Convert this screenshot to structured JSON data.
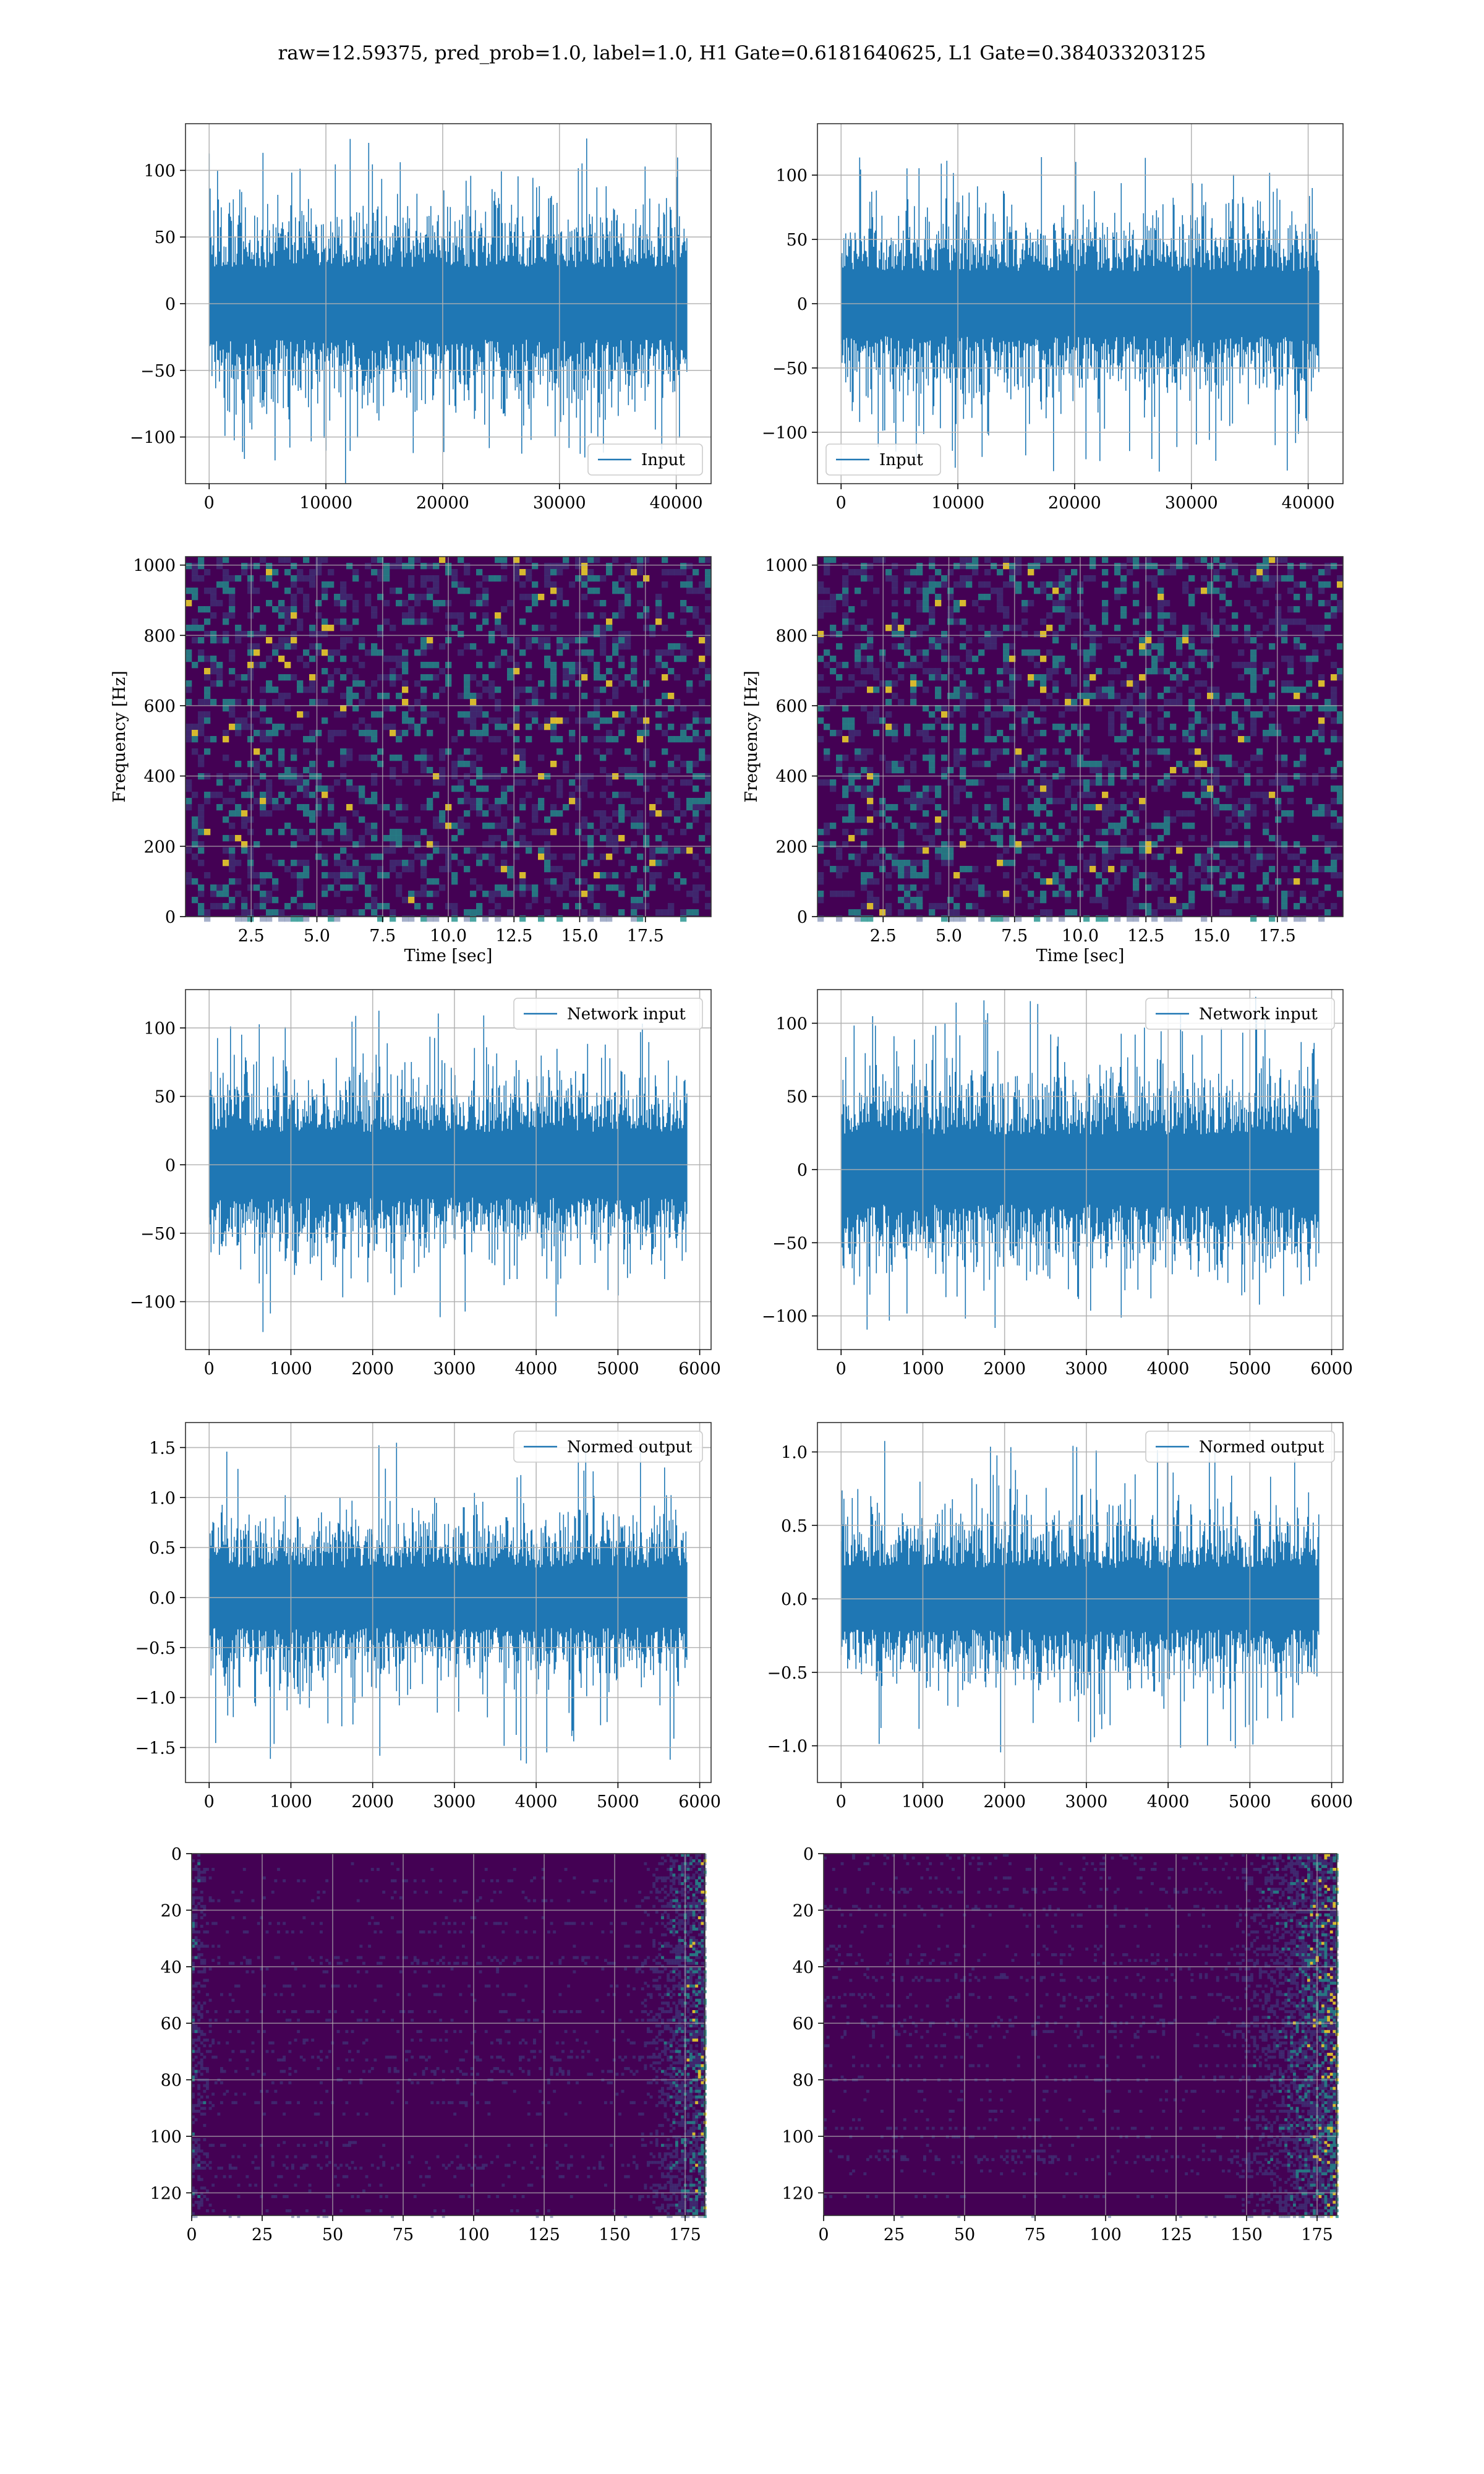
{
  "title": "raw=12.59375, pred_prob=1.0, label=1.0, H1 Gate=0.6181640625, L1 Gate=0.384033203125",
  "colors": {
    "line": "#1f77b4",
    "grid": "#b0b0b0",
    "spec_bg": "#440154",
    "spec_mid": "#3b528b",
    "spec_hi": "#21918c",
    "spec_peak": "#fde725"
  },
  "chart_data": [
    {
      "id": "h1-input",
      "type": "line",
      "legend": "Input",
      "legend_loc": "lower right",
      "xlim": [
        0,
        40960
      ],
      "xticks": [
        0,
        10000,
        20000,
        30000,
        40000
      ],
      "xtick_labels": [
        "0",
        "10000",
        "20000",
        "30000",
        "40000"
      ],
      "yticks": [
        -100,
        -50,
        0,
        50,
        100
      ],
      "ytick_labels": [
        "−100",
        "−50",
        "0",
        "50",
        "100"
      ],
      "ylim": [
        -135,
        135
      ],
      "series": {
        "n": 40960,
        "band": 45,
        "max": 124,
        "min": -118
      }
    },
    {
      "id": "l1-input",
      "type": "line",
      "legend": "Input",
      "legend_loc": "lower left",
      "xlim": [
        0,
        40960
      ],
      "xticks": [
        0,
        10000,
        20000,
        30000,
        40000
      ],
      "xtick_labels": [
        "0",
        "10000",
        "20000",
        "30000",
        "40000"
      ],
      "yticks": [
        -100,
        -50,
        0,
        50,
        100
      ],
      "ytick_labels": [
        "−100",
        "−50",
        "0",
        "50",
        "100"
      ],
      "ylim": [
        -140,
        140
      ],
      "series": {
        "n": 40960,
        "band": 42,
        "max": 118,
        "min": -132
      }
    },
    {
      "id": "h1-spectrogram",
      "type": "heatmap",
      "xlabel": "Time [sec]",
      "ylabel": "Frequency [Hz]",
      "xlim": [
        0,
        20
      ],
      "ylim": [
        0,
        1024
      ],
      "xticks": [
        2.5,
        5.0,
        7.5,
        10.0,
        12.5,
        15.0,
        17.5
      ],
      "xtick_labels": [
        "2.5",
        "5.0",
        "7.5",
        "10.0",
        "12.5",
        "15.0",
        "17.5"
      ],
      "yticks": [
        0,
        200,
        400,
        600,
        800,
        1000
      ],
      "ytick_labels": [
        "0",
        "200",
        "400",
        "600",
        "800",
        "1000"
      ]
    },
    {
      "id": "l1-spectrogram",
      "type": "heatmap",
      "xlabel": "Time [sec]",
      "ylabel": "Frequency [Hz]",
      "xlim": [
        0,
        20
      ],
      "ylim": [
        0,
        1024
      ],
      "xticks": [
        2.5,
        5.0,
        7.5,
        10.0,
        12.5,
        15.0,
        17.5
      ],
      "xtick_labels": [
        "2.5",
        "5.0",
        "7.5",
        "10.0",
        "12.5",
        "15.0",
        "17.5"
      ],
      "yticks": [
        0,
        200,
        400,
        600,
        800,
        1000
      ],
      "ytick_labels": [
        "0",
        "200",
        "400",
        "600",
        "800",
        "1000"
      ]
    },
    {
      "id": "h1-network-input",
      "type": "line",
      "legend": "Network input",
      "legend_loc": "upper right",
      "xlim": [
        0,
        5850
      ],
      "xticks": [
        0,
        1000,
        2000,
        3000,
        4000,
        5000,
        6000
      ],
      "xtick_labels": [
        "0",
        "1000",
        "2000",
        "3000",
        "4000",
        "5000",
        "6000"
      ],
      "yticks": [
        -100,
        -50,
        0,
        50,
        100
      ],
      "ytick_labels": [
        "−100",
        "−50",
        "0",
        "50",
        "100"
      ],
      "ylim": [
        -135,
        128
      ],
      "series": {
        "n": 5850,
        "band": 40,
        "max": 113,
        "min": -121
      }
    },
    {
      "id": "l1-network-input",
      "type": "line",
      "legend": "Network input",
      "legend_loc": "upper right",
      "xlim": [
        0,
        5850
      ],
      "xticks": [
        0,
        1000,
        2000,
        3000,
        4000,
        5000,
        6000
      ],
      "xtick_labels": [
        "0",
        "1000",
        "2000",
        "3000",
        "4000",
        "5000",
        "6000"
      ],
      "yticks": [
        -100,
        -50,
        0,
        50,
        100
      ],
      "ytick_labels": [
        "−100",
        "−50",
        "0",
        "50",
        "100"
      ],
      "ylim": [
        -123,
        123
      ],
      "series": {
        "n": 5850,
        "band": 40,
        "max": 116,
        "min": -113
      }
    },
    {
      "id": "h1-normed-output",
      "type": "line",
      "legend": "Normed output",
      "legend_loc": "upper right",
      "xlim": [
        0,
        5850
      ],
      "xticks": [
        0,
        1000,
        2000,
        3000,
        4000,
        5000,
        6000
      ],
      "xtick_labels": [
        "0",
        "1000",
        "2000",
        "3000",
        "4000",
        "5000",
        "6000"
      ],
      "yticks": [
        -1.5,
        -1.0,
        -0.5,
        0.0,
        0.5,
        1.0,
        1.5
      ],
      "ytick_labels": [
        "−1.5",
        "−1.0",
        "−0.5",
        "0.0",
        "0.5",
        "1.0",
        "1.5"
      ],
      "ylim": [
        -1.85,
        1.75
      ],
      "series": {
        "n": 5850,
        "band": 0.5,
        "max": 1.58,
        "min": -1.66
      }
    },
    {
      "id": "l1-normed-output",
      "type": "line",
      "legend": "Normed output",
      "legend_loc": "upper right",
      "xlim": [
        0,
        5850
      ],
      "xticks": [
        0,
        1000,
        2000,
        3000,
        4000,
        5000,
        6000
      ],
      "xtick_labels": [
        "0",
        "1000",
        "2000",
        "3000",
        "4000",
        "5000",
        "6000"
      ],
      "yticks": [
        -1.0,
        -0.5,
        0.0,
        0.5,
        1.0
      ],
      "ytick_labels": [
        "−1.0",
        "−0.5",
        "0.0",
        "0.5",
        "1.0"
      ],
      "ylim": [
        -1.25,
        1.2
      ],
      "series": {
        "n": 5850,
        "band": 0.35,
        "max": 1.12,
        "min": -1.05
      }
    },
    {
      "id": "h1-feature-map",
      "type": "heatmap",
      "xlim": [
        0,
        182
      ],
      "ylim": [
        128,
        0
      ],
      "xticks": [
        0,
        25,
        50,
        75,
        100,
        125,
        150,
        175
      ],
      "xtick_labels": [
        "0",
        "25",
        "50",
        "75",
        "100",
        "125",
        "150",
        "175"
      ],
      "yticks": [
        0,
        20,
        40,
        60,
        80,
        100,
        120
      ],
      "ytick_labels": [
        "0",
        "20",
        "40",
        "60",
        "80",
        "100",
        "120"
      ]
    },
    {
      "id": "l1-feature-map",
      "type": "heatmap",
      "xlim": [
        0,
        182
      ],
      "ylim": [
        128,
        0
      ],
      "xticks": [
        0,
        25,
        50,
        75,
        100,
        125,
        150,
        175
      ],
      "xtick_labels": [
        "0",
        "25",
        "50",
        "75",
        "100",
        "125",
        "150",
        "175"
      ],
      "yticks": [
        0,
        20,
        40,
        60,
        80,
        100,
        120
      ],
      "ytick_labels": [
        "0",
        "20",
        "40",
        "60",
        "80",
        "100",
        "120"
      ]
    }
  ]
}
